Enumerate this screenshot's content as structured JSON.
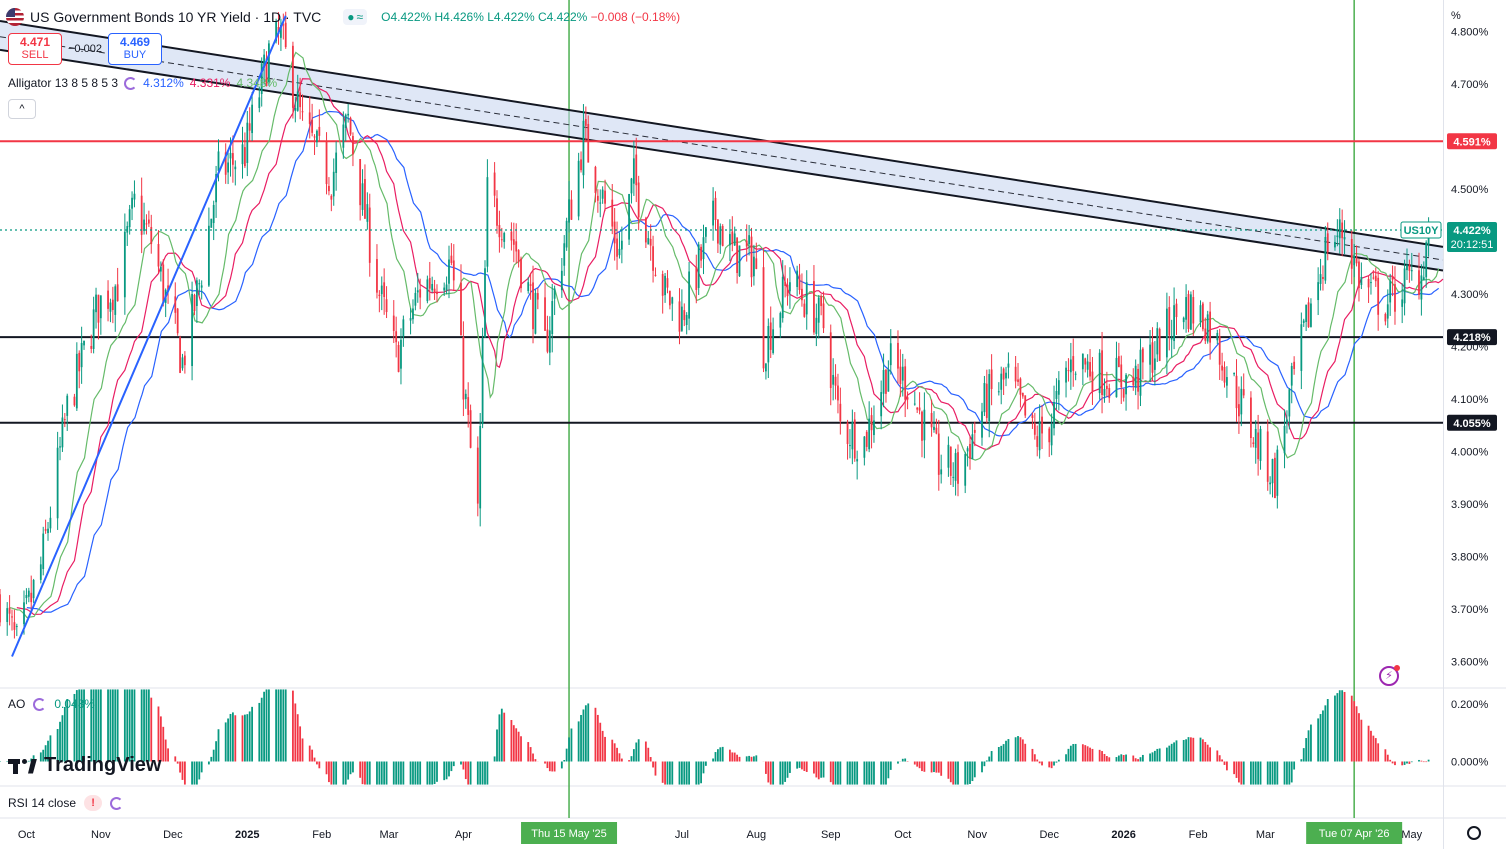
{
  "header": {
    "title": "US Government Bonds 10 YR Yield · 1D · TVC",
    "open": "O4.422%",
    "high": "H4.426%",
    "low": "L4.422%",
    "close": "C4.422%",
    "change": "−0.008 (−0.18%)"
  },
  "trade": {
    "sell_price": "4.471",
    "sell_label": "SELL",
    "spread": "−0.002",
    "buy_price": "4.469",
    "buy_label": "BUY"
  },
  "indicators": {
    "alligator_label": "Alligator 13 8 5 8 5 3",
    "alligator_jaw": "4.312%",
    "alligator_teeth": "4.331%",
    "alligator_lips": "4.348%",
    "ao_label": "AO",
    "ao_value": "0.048%",
    "rsi_label": "RSI 14 close",
    "rsi_warning": "!"
  },
  "branding": {
    "logo_text": "TradingView"
  },
  "axis": {
    "unit_label": "%"
  },
  "colors": {
    "up": "#089981",
    "down": "#f23645",
    "jaw": "#2962ff",
    "teeth": "#e91e63",
    "lips": "#66bb6a",
    "resistance": "#f23645",
    "support": "#131722",
    "trend": "#131722",
    "vline": "#4caf50",
    "channel_fill": "#c5d3ef",
    "uptrend": "#2962ff"
  },
  "chart_data": {
    "type": "candlestick",
    "title": "US Government Bonds 10 YR Yield · 1D · TVC",
    "ylabel": "%",
    "ylim": [
      3.55,
      4.86
    ],
    "y_ticks": [
      "4.800%",
      "4.700%",
      "4.500%",
      "4.300%",
      "4.200%",
      "4.100%",
      "4.000%",
      "3.900%",
      "3.800%",
      "3.700%",
      "3.600%"
    ],
    "y_tick_values": [
      4.8,
      4.7,
      4.5,
      4.3,
      4.2,
      4.1,
      4.0,
      3.9,
      3.8,
      3.7,
      3.6
    ],
    "x_labels": [
      "Oct",
      "Nov",
      "Dec",
      "2025",
      "Feb",
      "Mar",
      "Apr",
      "Jul",
      "Aug",
      "Sep",
      "Oct",
      "Nov",
      "Dec",
      "2026",
      "Feb",
      "Mar",
      "May"
    ],
    "x_label_dates": [
      "2024-10-01",
      "2024-11-01",
      "2024-12-01",
      "2025-01-01",
      "2025-02-01",
      "2025-03-01",
      "2025-04-01",
      "2025-07-01",
      "2025-08-01",
      "2025-09-01",
      "2025-10-01",
      "2025-11-01",
      "2025-12-01",
      "2026-01-01",
      "2026-02-01",
      "2026-03-01",
      "2026-05-01"
    ],
    "x_range": [
      "2024-09-20",
      "2026-05-14"
    ],
    "highlight_dates": [
      {
        "date": "2025-05-15",
        "label": "Thu 15 May '25"
      },
      {
        "date": "2026-04-07",
        "label": "Tue 07 Apr '26"
      }
    ],
    "horizontal_levels": [
      {
        "value": 4.591,
        "label": "4.591%",
        "role": "resistance"
      },
      {
        "value": 4.218,
        "label": "4.218%",
        "role": "support"
      },
      {
        "value": 4.055,
        "label": "4.055%",
        "role": "support"
      }
    ],
    "current": {
      "symbol": "US10Y",
      "value": 4.422,
      "label": "4.422%",
      "countdown": "20:12:51"
    },
    "trend_channel": {
      "upper": [
        [
          "2024-09-20",
          4.82
        ],
        [
          "2026-05-14",
          4.39
        ]
      ],
      "mid": [
        [
          "2024-09-20",
          4.79
        ],
        [
          "2026-05-14",
          4.365
        ]
      ],
      "lower": [
        [
          "2024-09-20",
          4.765
        ],
        [
          "2026-05-14",
          4.345
        ]
      ]
    },
    "uptrend_line": [
      [
        "2024-09-25",
        3.61
      ],
      [
        "2025-01-17",
        4.83
      ]
    ],
    "price_path": [
      [
        "2024-09-20",
        3.72
      ],
      [
        "2024-09-27",
        3.63
      ],
      [
        "2024-10-07",
        3.78
      ],
      [
        "2024-10-18",
        4.08
      ],
      [
        "2024-10-31",
        4.28
      ],
      [
        "2024-11-08",
        4.32
      ],
      [
        "2024-11-15",
        4.47
      ],
      [
        "2024-11-22",
        4.4
      ],
      [
        "2024-12-05",
        4.17
      ],
      [
        "2024-12-12",
        4.32
      ],
      [
        "2024-12-20",
        4.53
      ],
      [
        "2024-12-31",
        4.57
      ],
      [
        "2025-01-10",
        4.76
      ],
      [
        "2025-01-15",
        4.79
      ],
      [
        "2025-01-24",
        4.62
      ],
      [
        "2025-02-05",
        4.52
      ],
      [
        "2025-02-12",
        4.63
      ],
      [
        "2025-02-25",
        4.3
      ],
      [
        "2025-03-04",
        4.18
      ],
      [
        "2025-03-14",
        4.31
      ],
      [
        "2025-03-27",
        4.36
      ],
      [
        "2025-04-04",
        4.0
      ],
      [
        "2025-04-07",
        3.88
      ],
      [
        "2025-04-11",
        4.49
      ],
      [
        "2025-04-22",
        4.4
      ],
      [
        "2025-05-05",
        4.2
      ],
      [
        "2025-05-15",
        4.45
      ],
      [
        "2025-05-21",
        4.6
      ],
      [
        "2025-06-05",
        4.38
      ],
      [
        "2025-06-11",
        4.52
      ],
      [
        "2025-06-24",
        4.3
      ],
      [
        "2025-07-01",
        4.26
      ],
      [
        "2025-07-15",
        4.45
      ],
      [
        "2025-07-22",
        4.38
      ],
      [
        "2025-07-31",
        4.37
      ],
      [
        "2025-08-04",
        4.2
      ],
      [
        "2025-08-15",
        4.33
      ],
      [
        "2025-08-29",
        4.24
      ],
      [
        "2025-09-05",
        4.05
      ],
      [
        "2025-09-15",
        4.02
      ],
      [
        "2025-09-25",
        4.17
      ],
      [
        "2025-10-03",
        4.13
      ],
      [
        "2025-10-16",
        3.98
      ],
      [
        "2025-10-24",
        3.96
      ],
      [
        "2025-11-05",
        4.1
      ],
      [
        "2025-11-14",
        4.14
      ],
      [
        "2025-11-25",
        4.02
      ],
      [
        "2025-12-01",
        4.05
      ],
      [
        "2025-12-11",
        4.18
      ],
      [
        "2025-12-22",
        4.15
      ],
      [
        "2026-01-05",
        4.13
      ],
      [
        "2026-01-15",
        4.2
      ],
      [
        "2026-01-26",
        4.28
      ],
      [
        "2026-02-05",
        4.25
      ],
      [
        "2026-02-18",
        4.1
      ],
      [
        "2026-02-27",
        4.0
      ],
      [
        "2026-03-05",
        3.95
      ],
      [
        "2026-03-10",
        4.08
      ],
      [
        "2026-03-20",
        4.28
      ],
      [
        "2026-03-27",
        4.4
      ],
      [
        "2026-04-03",
        4.42
      ],
      [
        "2026-04-10",
        4.32
      ],
      [
        "2026-04-20",
        4.28
      ],
      [
        "2026-04-28",
        4.32
      ],
      [
        "2026-05-05",
        4.34
      ],
      [
        "2026-05-08",
        4.422
      ]
    ],
    "ao_panel": {
      "label": "AO",
      "value": "0.048%",
      "y_ticks": [
        "0.200%",
        "0.000%"
      ],
      "y_tick_values": [
        0.2,
        0.0
      ],
      "ylim": [
        -0.085,
        0.255
      ]
    }
  }
}
